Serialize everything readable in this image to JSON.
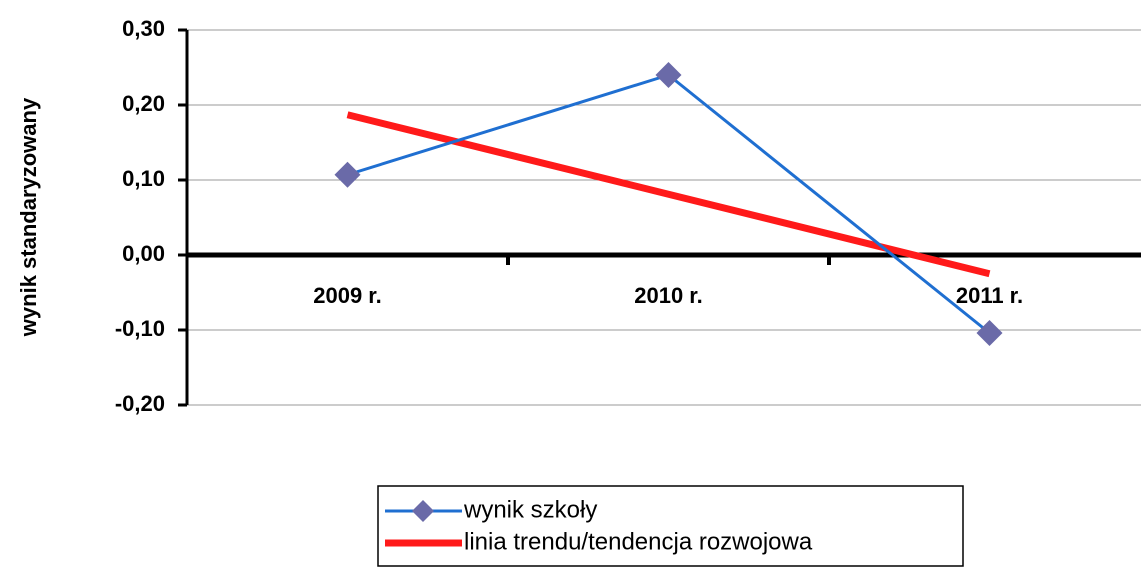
{
  "chart_data": {
    "type": "line",
    "y_axis_label": "wynik standaryzowany",
    "categories": [
      "2009 r.",
      "2010 r.",
      "2011 r."
    ],
    "series": [
      {
        "name": "wynik szkoły",
        "color": "#1f6fd1",
        "marker_color": "#6a6aa8",
        "values": [
          0.107,
          0.24,
          -0.104
        ]
      },
      {
        "name": "linia trendu/tendencja rozwojowa",
        "color": "#ff1a1a",
        "values": [
          0.187,
          0.081,
          -0.025
        ]
      }
    ],
    "ylim": [
      -0.2,
      0.3
    ],
    "yticks": [
      {
        "value": -0.2,
        "label": "-0,20"
      },
      {
        "value": -0.1,
        "label": "-0,10"
      },
      {
        "value": 0,
        "label": "0,00"
      },
      {
        "value": 0.1,
        "label": "0,10"
      },
      {
        "value": 0.2,
        "label": "0,20"
      },
      {
        "value": 0.3,
        "label": "0,30"
      }
    ],
    "grid": true
  }
}
